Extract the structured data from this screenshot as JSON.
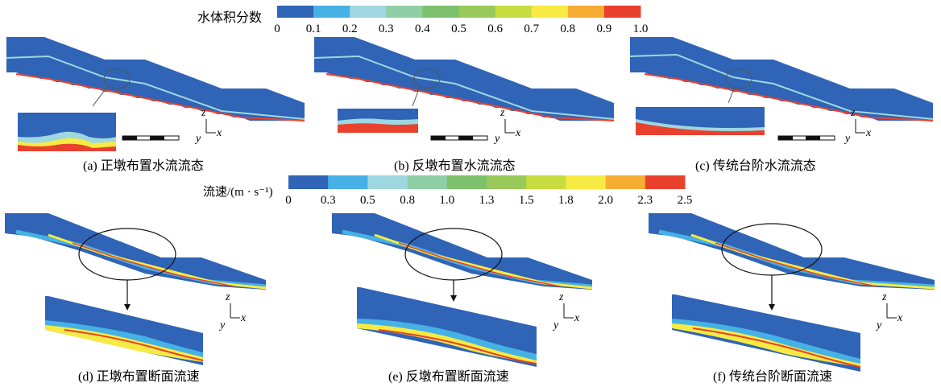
{
  "colorbars": [
    {
      "title": "水体积分数",
      "ticks": [
        "0",
        "0.1",
        "0.2",
        "0.3",
        "0.4",
        "0.5",
        "0.6",
        "0.7",
        "0.8",
        "0.9",
        "1.0"
      ],
      "colors": [
        "#2f64b6",
        "#46b1e5",
        "#9ed7e0",
        "#8ecfa6",
        "#7ec16c",
        "#98c95a",
        "#c7dc3f",
        "#f7eb43",
        "#f6ad33",
        "#e8422f"
      ]
    },
    {
      "title": "流速/(m · s⁻¹)",
      "ticks": [
        "0",
        "0.3",
        "0.5",
        "0.8",
        "1.0",
        "1.3",
        "1.5",
        "1.8",
        "2.0",
        "2.3",
        "2.5"
      ],
      "colors": [
        "#2f64b6",
        "#46b1e5",
        "#9ed7e0",
        "#8ecfa6",
        "#7ec16c",
        "#98c95a",
        "#c7dc3f",
        "#f7eb43",
        "#f6ad33",
        "#e8422f"
      ]
    }
  ],
  "panels": [
    {
      "id": "a",
      "caption": "(a) 正墩布置水流流态"
    },
    {
      "id": "b",
      "caption": "(b) 反墩布置水流流态"
    },
    {
      "id": "c",
      "caption": "(c) 传统台阶水流流态"
    },
    {
      "id": "d",
      "caption": "(d) 正墩布置断面流速"
    },
    {
      "id": "e",
      "caption": "(e) 反墩布置断面流速"
    },
    {
      "id": "f",
      "caption": "(f) 传统台阶断面流速"
    }
  ],
  "axes": {
    "z": "z",
    "y": "y",
    "x": "x"
  },
  "colors": {
    "water": "#2f64b6",
    "air": "#e8422f",
    "step": "#2f64b6",
    "line": "#111111"
  }
}
